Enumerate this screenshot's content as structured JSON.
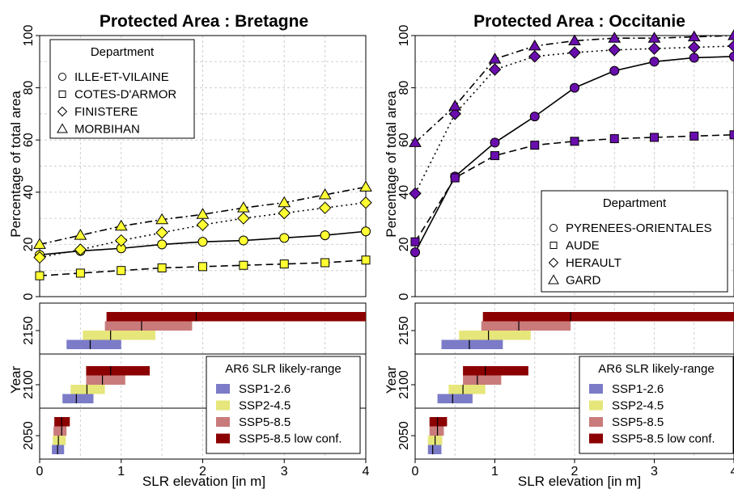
{
  "chart_data": [
    {
      "type": "line",
      "title": "Protected Area : Bretagne",
      "xlabel": "SLR elevation [in m]",
      "ylabel": "Percentage of total area",
      "xlim": [
        0,
        4
      ],
      "ylim": [
        0,
        100
      ],
      "xticks": [
        "0",
        "1",
        "2",
        "3",
        "4"
      ],
      "yticks": [
        "0",
        "20",
        "40",
        "60",
        "80",
        "100"
      ],
      "x": [
        0,
        0.5,
        1,
        1.5,
        2,
        2.5,
        3,
        3.5,
        4
      ],
      "marker_color": "#ffff33",
      "legend": {
        "title": "Department",
        "placement": "top-left"
      },
      "series": [
        {
          "name": "ILLE-ET-VILAINE",
          "marker": "circle",
          "line": "solid",
          "values": [
            16,
            17.5,
            18.5,
            20,
            21,
            21.5,
            22.5,
            23.5,
            25
          ]
        },
        {
          "name": "COTES-D'ARMOR",
          "marker": "square",
          "line": "dashed",
          "values": [
            8,
            9,
            10,
            11,
            11.5,
            12,
            12.5,
            13,
            14
          ]
        },
        {
          "name": "FINISTERE",
          "marker": "diamond",
          "line": "dotted",
          "values": [
            15,
            18,
            21.5,
            24.5,
            27.5,
            30,
            32,
            34,
            36
          ]
        },
        {
          "name": "MORBIHAN",
          "marker": "triangle",
          "line": "dotdash",
          "values": [
            20,
            23.5,
            27,
            29.5,
            31.5,
            34,
            36,
            39,
            42
          ]
        }
      ]
    },
    {
      "type": "line",
      "title": "Protected Area : Occitanie",
      "xlabel": "SLR elevation [in m]",
      "ylabel": "Percentage of total area",
      "xlim": [
        0,
        4
      ],
      "ylim": [
        0,
        100
      ],
      "xticks": [
        "0",
        "1",
        "2",
        "3",
        "4"
      ],
      "yticks": [
        "0",
        "20",
        "40",
        "60",
        "80",
        "100"
      ],
      "x": [
        0,
        0.5,
        1,
        1.5,
        2,
        2.5,
        3,
        3.5,
        4
      ],
      "marker_color": "#6a0dad",
      "legend": {
        "title": "Department",
        "placement": "bottom-right"
      },
      "series": [
        {
          "name": "PYRENEES-ORIENTALES",
          "marker": "circle",
          "line": "solid",
          "values": [
            17,
            46,
            59,
            69,
            80,
            86.5,
            90,
            91.5,
            92
          ]
        },
        {
          "name": "AUDE",
          "marker": "square",
          "line": "dashed",
          "values": [
            21,
            45.5,
            54,
            58,
            59.5,
            60.5,
            61,
            61.5,
            62
          ]
        },
        {
          "name": "HERAULT",
          "marker": "diamond",
          "line": "dotted",
          "values": [
            39.5,
            70,
            87,
            92,
            93.5,
            94.5,
            95,
            95.5,
            96
          ]
        },
        {
          "name": "GARD",
          "marker": "triangle",
          "line": "dotdash",
          "values": [
            59,
            73,
            91,
            96,
            98,
            99,
            99,
            99.5,
            100
          ]
        }
      ]
    },
    {
      "type": "bar",
      "orientation": "horizontal",
      "region": "Bretagne",
      "xlabel": "SLR elevation [in m]",
      "ylabel": "Year",
      "xlim": [
        0,
        4
      ],
      "xticks": [
        "0",
        "1",
        "2",
        "3",
        "4"
      ],
      "legend": {
        "title": "AR6 SLR likely-range",
        "placement": "right"
      },
      "scenarios": [
        {
          "name": "SSP1-2.6",
          "color": "#7b7bc8"
        },
        {
          "name": "SSP2-4.5",
          "color": "#e6e67a"
        },
        {
          "name": "SSP5-8.5",
          "color": "#c97b7b"
        },
        {
          "name": "SSP5-8.5 low conf.",
          "color": "#8b0000"
        }
      ],
      "years": [
        {
          "label": "2150",
          "ranges": [
            [
              0.33,
              1.0,
              0.62
            ],
            [
              0.53,
              1.42,
              0.87
            ],
            [
              0.8,
              1.87,
              1.25
            ],
            [
              0.82,
              4.2,
              1.92
            ]
          ]
        },
        {
          "label": "2100",
          "ranges": [
            [
              0.28,
              0.66,
              0.45
            ],
            [
              0.38,
              0.8,
              0.58
            ],
            [
              0.57,
              1.05,
              0.77
            ],
            [
              0.57,
              1.35,
              0.87
            ]
          ]
        },
        {
          "label": "2050",
          "ranges": [
            [
              0.15,
              0.3,
              0.22
            ],
            [
              0.16,
              0.32,
              0.23
            ],
            [
              0.17,
              0.33,
              0.27
            ],
            [
              0.18,
              0.37,
              0.27
            ]
          ]
        }
      ]
    },
    {
      "type": "bar",
      "orientation": "horizontal",
      "region": "Occitanie",
      "xlabel": "SLR elevation [in m]",
      "ylabel": "Year",
      "xlim": [
        0,
        4
      ],
      "xticks": [
        "0",
        "1",
        "2",
        "3",
        "4"
      ],
      "legend": {
        "title": "AR6 SLR likely-range",
        "placement": "right"
      },
      "scenarios": [
        {
          "name": "SSP1-2.6",
          "color": "#7b7bc8"
        },
        {
          "name": "SSP2-4.5",
          "color": "#e6e67a"
        },
        {
          "name": "SSP5-8.5",
          "color": "#c97b7b"
        },
        {
          "name": "SSP5-8.5 low conf.",
          "color": "#8b0000"
        }
      ],
      "years": [
        {
          "label": "2150",
          "ranges": [
            [
              0.33,
              1.1,
              0.68
            ],
            [
              0.55,
              1.45,
              0.92
            ],
            [
              0.83,
              1.95,
              1.3
            ],
            [
              0.85,
              4.2,
              1.95
            ]
          ]
        },
        {
          "label": "2100",
          "ranges": [
            [
              0.28,
              0.72,
              0.47
            ],
            [
              0.42,
              0.88,
              0.6
            ],
            [
              0.6,
              1.08,
              0.78
            ],
            [
              0.6,
              1.42,
              0.88
            ]
          ]
        },
        {
          "label": "2050",
          "ranges": [
            [
              0.16,
              0.33,
              0.22
            ],
            [
              0.16,
              0.34,
              0.25
            ],
            [
              0.18,
              0.36,
              0.28
            ],
            [
              0.18,
              0.4,
              0.28
            ]
          ]
        }
      ]
    }
  ]
}
